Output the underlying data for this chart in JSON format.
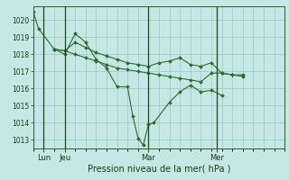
{
  "xlabel": "Pression niveau de la mer( hPa )",
  "ylim": [
    1012.5,
    1020.8
  ],
  "xlim": [
    0,
    24
  ],
  "background_color": "#c5e8e5",
  "plot_bg_color": "#c5e8e5",
  "grid_color": "#9ac8c4",
  "line_color": "#2d6b2d",
  "marker_color": "#2d6b2d",
  "series": [
    {
      "x": [
        0.0,
        0.5,
        2.0,
        3.0,
        4.0,
        5.0,
        6.0,
        7.0,
        8.0,
        9.0,
        9.5,
        10.0,
        10.5,
        11.0,
        11.5,
        13.0,
        14.0,
        15.0,
        16.0,
        17.0,
        18.0
      ],
      "y": [
        1020.5,
        1019.5,
        1018.3,
        1018.0,
        1019.2,
        1018.7,
        1017.7,
        1017.2,
        1016.1,
        1016.1,
        1014.4,
        1013.1,
        1012.7,
        1013.9,
        1014.0,
        1015.2,
        1015.8,
        1016.2,
        1015.8,
        1015.9,
        1015.6
      ]
    },
    {
      "x": [
        2.0,
        3.0,
        4.0,
        5.0,
        6.0,
        7.0,
        8.0,
        9.0,
        10.0,
        11.0,
        12.0,
        13.0,
        14.0,
        15.0,
        16.0,
        17.0,
        18.0,
        19.0,
        20.0
      ],
      "y": [
        1018.3,
        1018.2,
        1018.7,
        1018.4,
        1018.1,
        1017.9,
        1017.7,
        1017.5,
        1017.4,
        1017.3,
        1017.5,
        1017.6,
        1017.8,
        1017.4,
        1017.3,
        1017.5,
        1016.9,
        1016.8,
        1016.8
      ]
    },
    {
      "x": [
        2.0,
        3.0,
        4.0,
        5.0,
        6.0,
        7.0,
        8.0,
        9.0,
        10.0,
        11.0,
        12.0,
        13.0,
        14.0,
        15.0,
        16.0,
        17.0,
        18.0,
        19.0,
        20.0
      ],
      "y": [
        1018.3,
        1018.2,
        1018.0,
        1017.8,
        1017.6,
        1017.4,
        1017.2,
        1017.1,
        1017.0,
        1016.9,
        1016.8,
        1016.7,
        1016.6,
        1016.5,
        1016.4,
        1016.9,
        1016.9,
        1016.8,
        1016.7
      ]
    }
  ],
  "yticks": [
    1013,
    1014,
    1015,
    1016,
    1017,
    1018,
    1019,
    1020
  ],
  "xtick_positions": [
    1.0,
    3.0,
    11.0,
    17.5
  ],
  "xtick_labels": [
    "Lun",
    "Jeu",
    "Mar",
    "Mer"
  ],
  "vlines": [
    1.0,
    3.0,
    11.0,
    17.5
  ]
}
